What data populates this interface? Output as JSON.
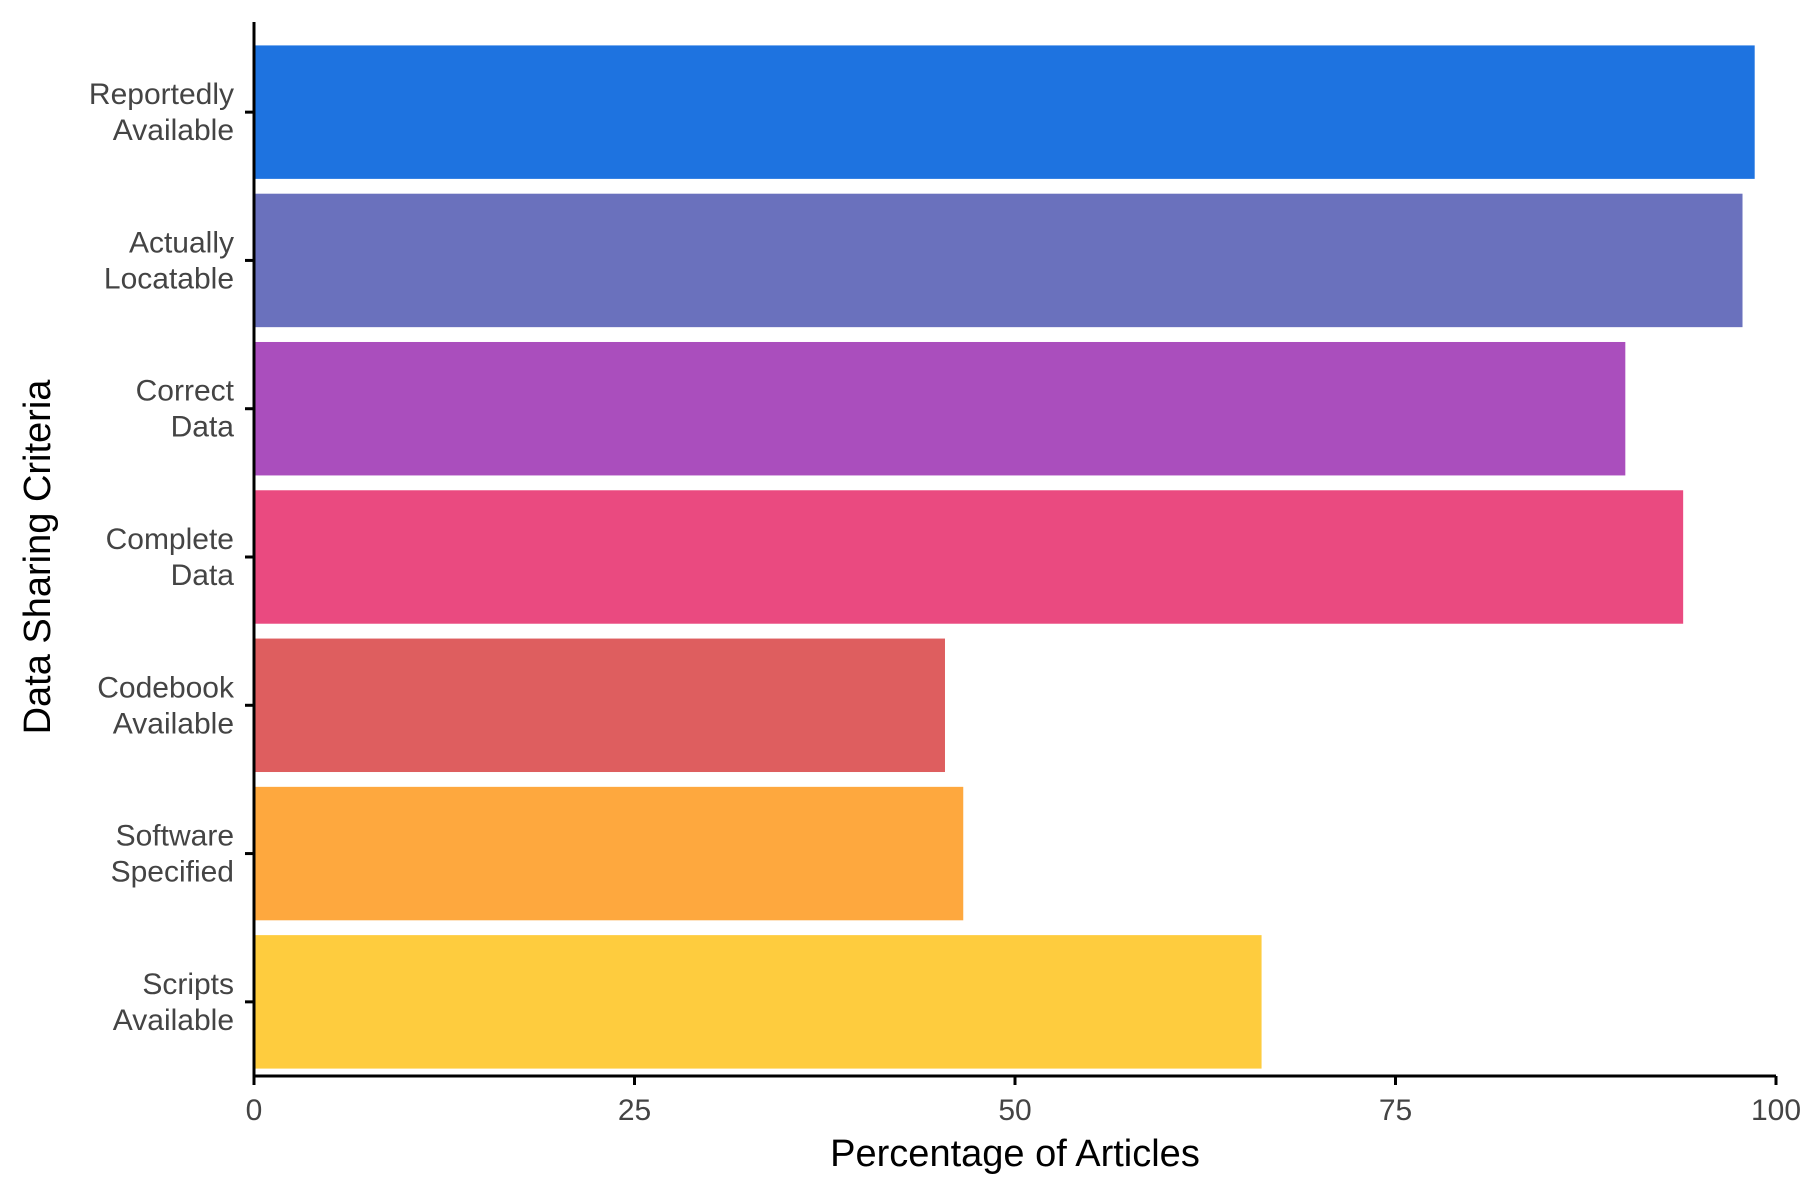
{
  "chart_data": {
    "type": "bar",
    "orientation": "horizontal",
    "xlabel": "Percentage of Articles",
    "ylabel": "Data Sharing Criteria",
    "xlim": [
      0,
      100
    ],
    "x_ticks": [
      "0",
      "25",
      "50",
      "75",
      "100"
    ],
    "grid": false,
    "legend": "none",
    "categories": [
      [
        "Reportedly",
        "Available"
      ],
      [
        "Actually",
        "Locatable"
      ],
      [
        "Correct",
        "Data"
      ],
      [
        "Complete",
        "Data"
      ],
      [
        "Codebook",
        "Available"
      ],
      [
        "Software",
        "Specified"
      ],
      [
        "Scripts",
        "Available"
      ]
    ],
    "values": [
      98.6,
      97.8,
      90.1,
      93.9,
      45.4,
      46.6,
      66.2
    ],
    "colors": [
      "#1E73E0",
      "#6A71BD",
      "#AA4EBD",
      "#EA4A80",
      "#DE5E5F",
      "#FEA83E",
      "#FECC3E"
    ]
  }
}
